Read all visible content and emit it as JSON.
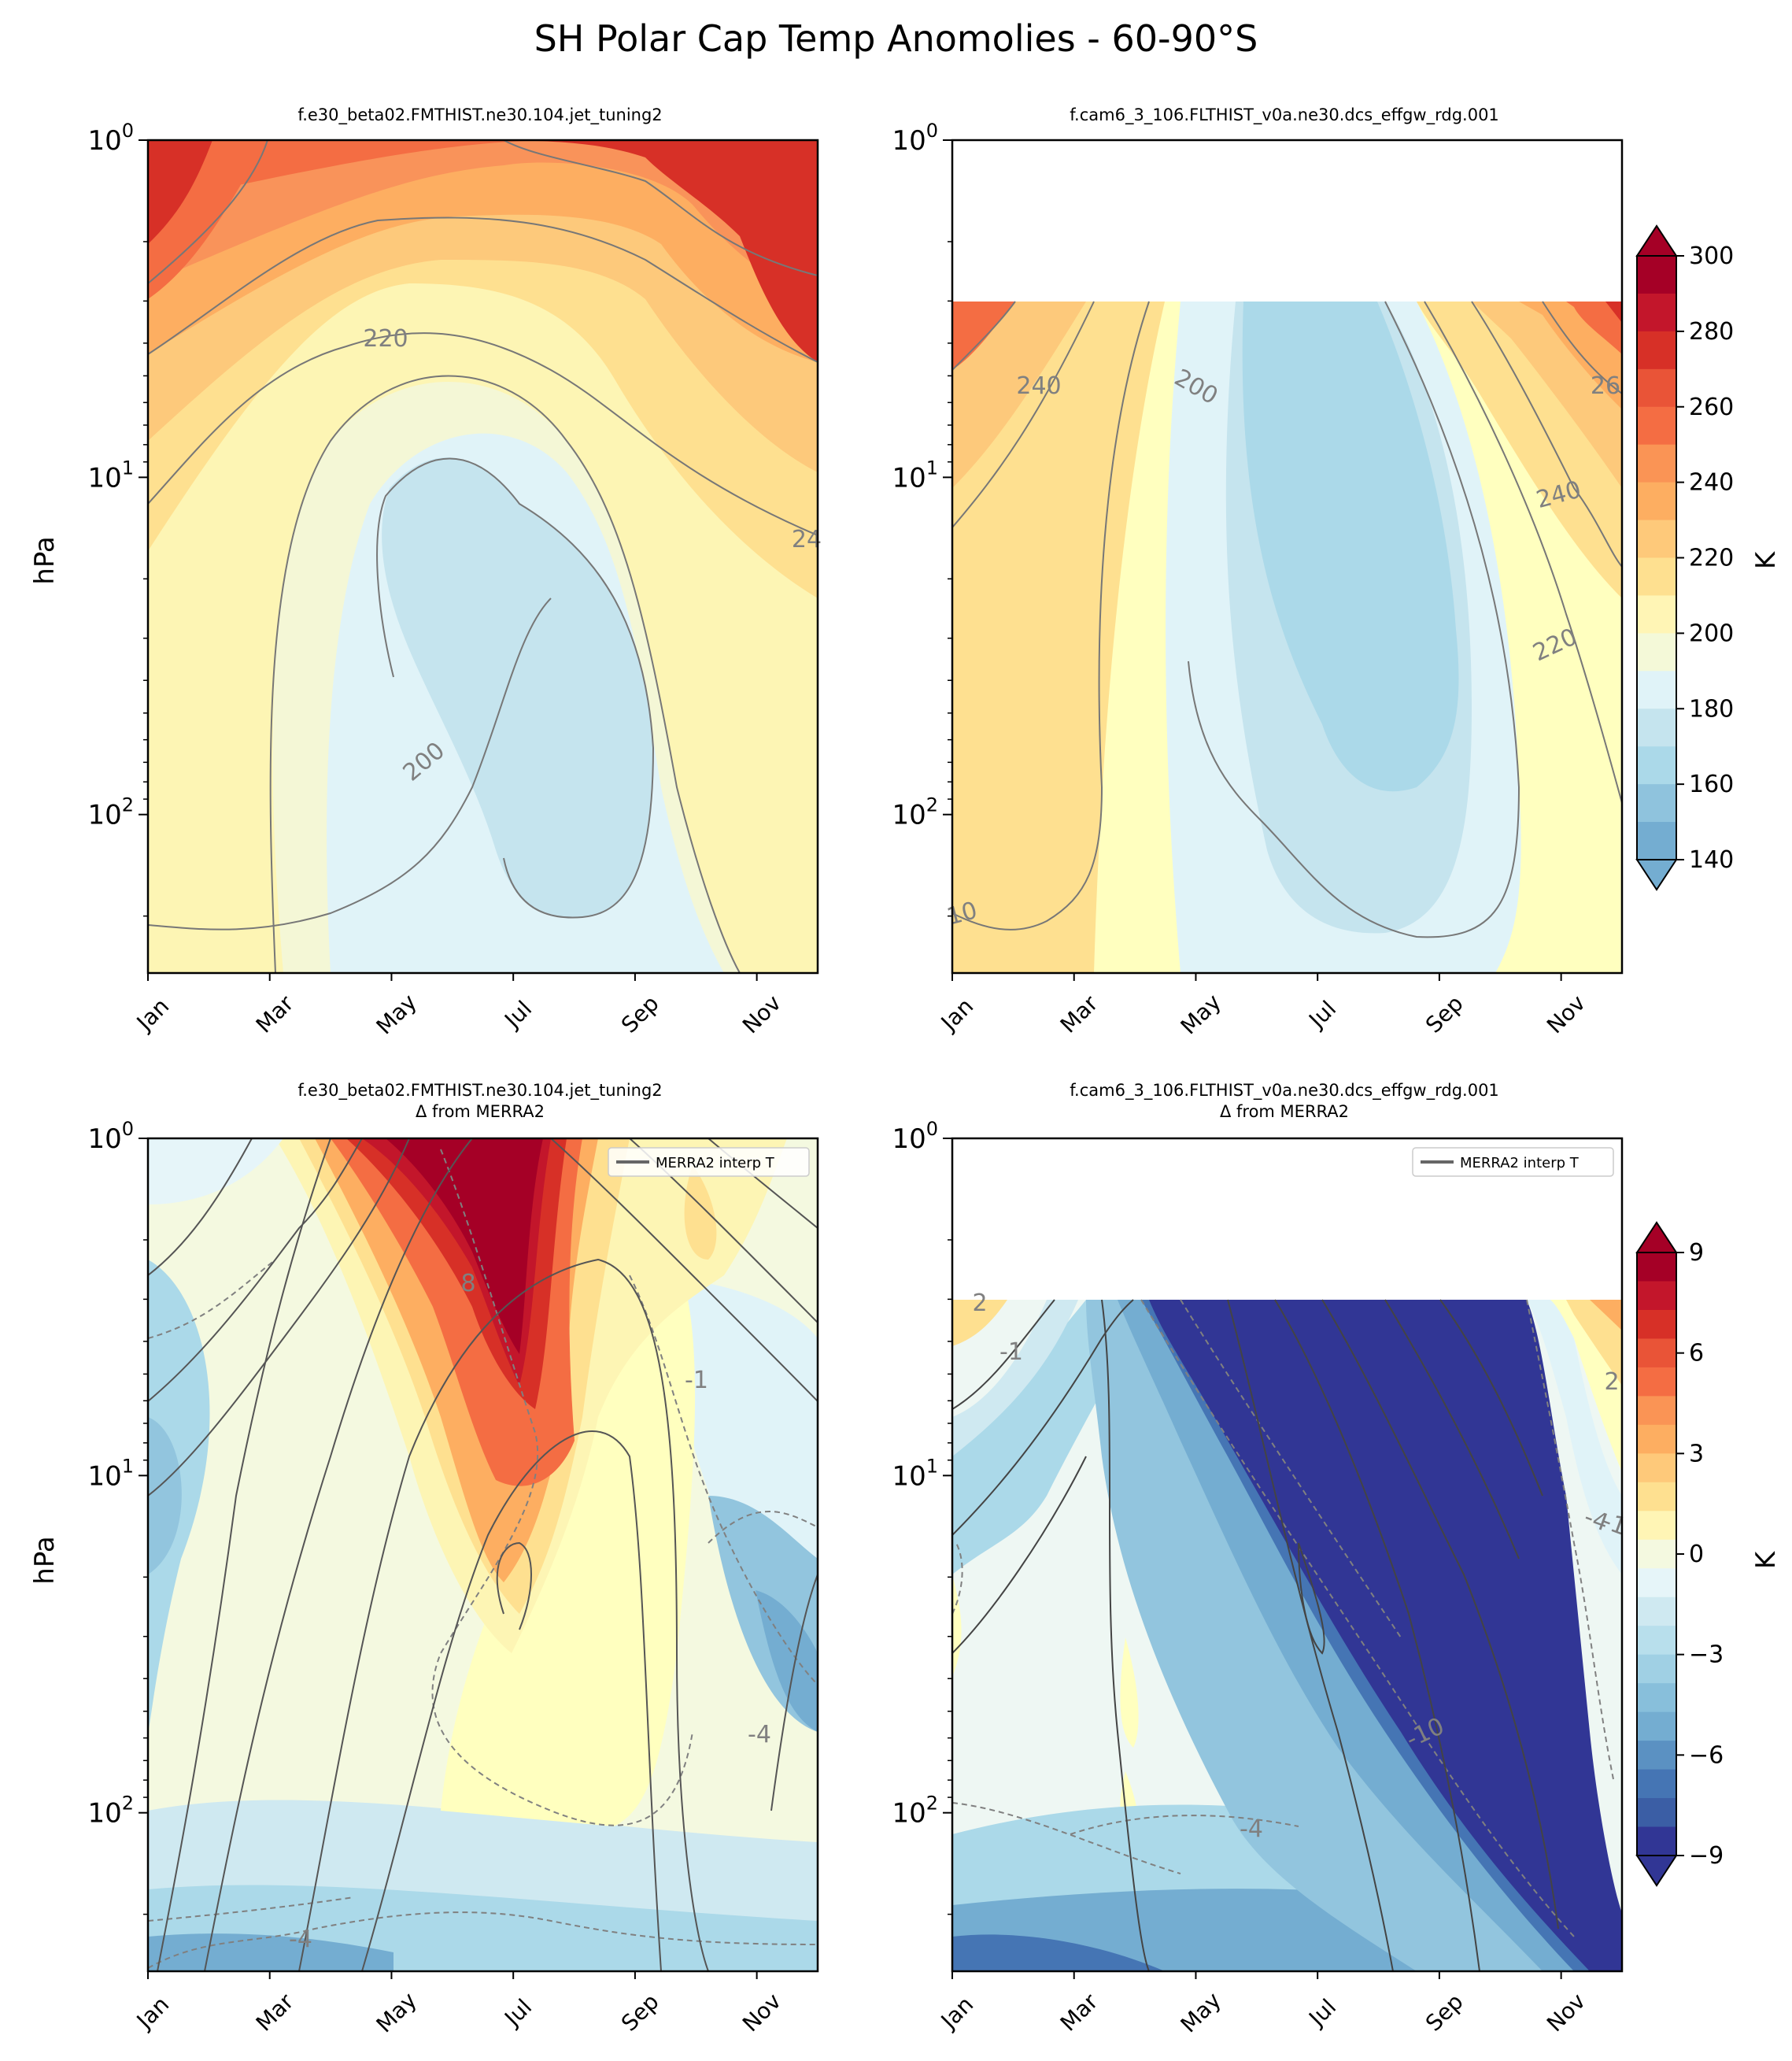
{
  "suptitle": "SH Polar Cap Temp Anomolies - 60-90°S",
  "panels": {
    "tl": {
      "title": "f.e30_beta02.FMTHIST.ne30.104.jet_tuning2",
      "subtitle": ""
    },
    "tr": {
      "title": "f.cam6_3_106.FLTHIST_v0a.ne30.dcs_effgw_rdg.001",
      "subtitle": ""
    },
    "bl": {
      "title": "f.e30_beta02.FMTHIST.ne30.104.jet_tuning2",
      "subtitle": "Δ from MERRA2",
      "legend": "MERRA2 interp T"
    },
    "br": {
      "title": "f.cam6_3_106.FLTHIST_v0a.ne30.dcs_effgw_rdg.001",
      "subtitle": "Δ from MERRA2",
      "legend": "MERRA2 interp T"
    }
  },
  "ylabel": "hPa",
  "colorbar_label": "K",
  "colors": {
    "warm1": "#a50026",
    "warm2": "#d73027",
    "warm3": "#f46d43",
    "warm4": "#fdae61",
    "warm5": "#fee090",
    "neutral": "#ffffbf",
    "cool1": "#e0f3f8",
    "cool2": "#abd9e9",
    "cool3": "#74add1",
    "cool4": "#4575b4",
    "cool5": "#313695"
  },
  "chart_data": [
    {
      "type": "heatmap",
      "panel": "tl",
      "title": "f.e30_beta02.FMTHIST.ne30.104.jet_tuning2",
      "xlabel": "",
      "ylabel": "hPa",
      "x_ticks": [
        "Jan",
        "Mar",
        "May",
        "Jul",
        "Sep",
        "Nov"
      ],
      "y_ticks": [
        "10⁰",
        "10¹",
        "10²"
      ],
      "y_scale": "log",
      "y_range_hPa": [
        1,
        300
      ],
      "contour_labels": [
        "220",
        "200",
        "24"
      ],
      "field": "temperature (K)"
    },
    {
      "type": "heatmap",
      "panel": "tr",
      "title": "f.cam6_3_106.FLTHIST_v0a.ne30.dcs_effgw_rdg.001",
      "xlabel": "",
      "ylabel": "",
      "x_ticks": [
        "Jan",
        "Mar",
        "May",
        "Jul",
        "Sep",
        "Nov"
      ],
      "y_ticks": [
        "10⁰",
        "10¹",
        "10²"
      ],
      "y_scale": "log",
      "y_range_hPa": [
        1,
        300
      ],
      "data_top_hPa": 3,
      "contour_labels": [
        "240",
        "200",
        "26",
        "240",
        "220",
        "10"
      ],
      "colorbar": {
        "ticks": [
          "300",
          "280",
          "260",
          "240",
          "220",
          "200",
          "180",
          "160",
          "140"
        ],
        "label": "K"
      }
    },
    {
      "type": "heatmap",
      "panel": "bl",
      "title": "f.e30_beta02.FMTHIST.ne30.104.jet_tuning2",
      "subtitle": "Δ from MERRA2",
      "xlabel": "",
      "ylabel": "hPa",
      "x_ticks": [
        "Jan",
        "Mar",
        "May",
        "Jul",
        "Sep",
        "Nov"
      ],
      "y_ticks": [
        "10⁰",
        "10¹",
        "10²"
      ],
      "y_scale": "log",
      "y_range_hPa": [
        1,
        300
      ],
      "legend": [
        "MERRA2 interp T"
      ],
      "contour_labels": [
        "8",
        "-1",
        "-4",
        "-4"
      ],
      "field": "temperature difference (K)"
    },
    {
      "type": "heatmap",
      "panel": "br",
      "title": "f.cam6_3_106.FLTHIST_v0a.ne30.dcs_effgw_rdg.001",
      "subtitle": "Δ from MERRA2",
      "xlabel": "",
      "ylabel": "",
      "x_ticks": [
        "Jan",
        "Mar",
        "May",
        "Jul",
        "Sep",
        "Nov"
      ],
      "y_ticks": [
        "10⁰",
        "10¹",
        "10²"
      ],
      "y_scale": "log",
      "y_range_hPa": [
        1,
        300
      ],
      "data_top_hPa": 3,
      "legend": [
        "MERRA2 interp T"
      ],
      "contour_labels": [
        "2",
        "-1",
        "-10",
        "-4",
        "-4",
        "-1",
        "2"
      ],
      "colorbar": {
        "ticks": [
          "9",
          "6",
          "3",
          "0",
          "−3",
          "−6",
          "−9"
        ],
        "label": "K"
      }
    }
  ]
}
